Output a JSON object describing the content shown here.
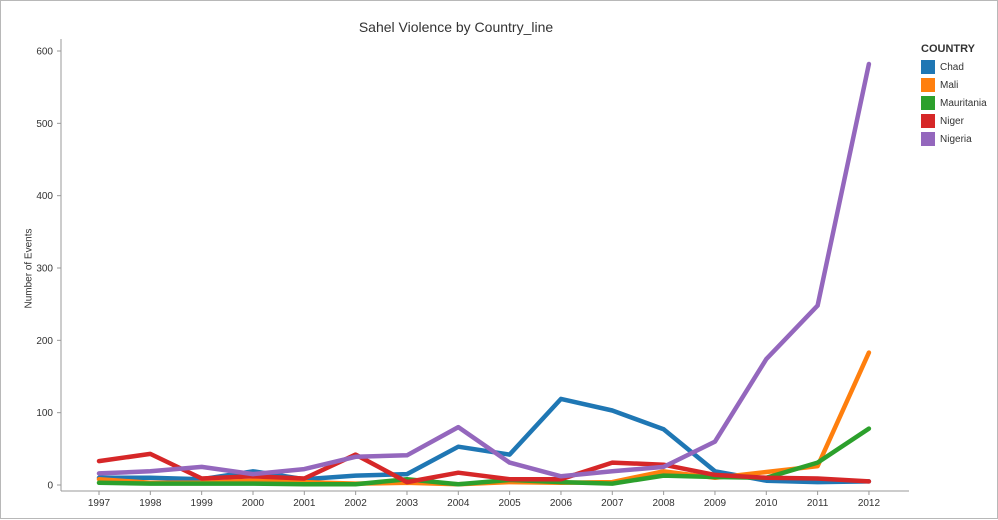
{
  "chart_data": {
    "type": "line",
    "title": "Sahel Violence by Country_line",
    "xlabel": "",
    "ylabel": "Number of Events",
    "x": [
      "1997",
      "1998",
      "1999",
      "2000",
      "2001",
      "2002",
      "2003",
      "2004",
      "2005",
      "2006",
      "2007",
      "2008",
      "2009",
      "2010",
      "2011",
      "2012"
    ],
    "ylim": [
      0,
      620
    ],
    "yticks": [
      0,
      100,
      200,
      300,
      400,
      500,
      600
    ],
    "grid": false,
    "legend_title": "COUNTRY",
    "legend_position": "top-right",
    "series": [
      {
        "name": "Chad",
        "color": "#1f77b4",
        "values": [
          10,
          10,
          8,
          19,
          8,
          13,
          15,
          53,
          42,
          119,
          103,
          77,
          19,
          6,
          4,
          5
        ]
      },
      {
        "name": "Mali",
        "color": "#ff7f0e",
        "values": [
          8,
          3,
          3,
          6,
          4,
          2,
          3,
          1,
          4,
          3,
          4,
          19,
          10,
          18,
          26,
          183
        ]
      },
      {
        "name": "Mauritania",
        "color": "#2ca02c",
        "values": [
          3,
          2,
          2,
          2,
          1,
          1,
          8,
          1,
          7,
          4,
          2,
          13,
          11,
          10,
          31,
          78
        ]
      },
      {
        "name": "Niger",
        "color": "#d62728",
        "values": [
          33,
          43,
          9,
          12,
          9,
          42,
          4,
          17,
          8,
          8,
          31,
          28,
          14,
          10,
          9,
          5
        ]
      },
      {
        "name": "Nigeria",
        "color": "#9467bd",
        "values": [
          16,
          19,
          25,
          15,
          22,
          39,
          41,
          80,
          31,
          12,
          19,
          25,
          60,
          174,
          248,
          582
        ]
      }
    ]
  }
}
